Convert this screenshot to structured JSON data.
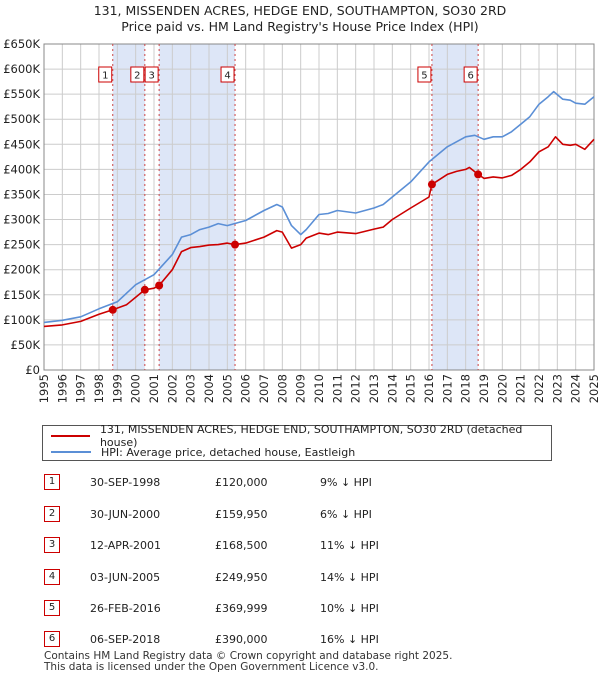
{
  "title_line1": "131, MISSENDEN ACRES, HEDGE END, SOUTHAMPTON, SO30 2RD",
  "title_line2": "Price paid vs. HM Land Registry's House Price Index (HPI)",
  "colors": {
    "property": "#cc0000",
    "hpi": "#5b8fd6",
    "band": "#dde6f7",
    "grid": "#cccccc"
  },
  "chart_data": {
    "type": "line",
    "y_tick_labels": [
      "£0",
      "£50K",
      "£100K",
      "£150K",
      "£200K",
      "£250K",
      "£300K",
      "£350K",
      "£400K",
      "£450K",
      "£500K",
      "£550K",
      "£600K",
      "£650K"
    ],
    "y_ticks": [
      0,
      50000,
      100000,
      150000,
      200000,
      250000,
      300000,
      350000,
      400000,
      450000,
      500000,
      550000,
      600000,
      650000
    ],
    "ylim": [
      0,
      650000
    ],
    "x_tick_labels": [
      "1995",
      "1996",
      "1997",
      "1998",
      "1999",
      "2000",
      "2001",
      "2002",
      "2003",
      "2004",
      "2005",
      "2006",
      "2007",
      "2008",
      "2009",
      "2010",
      "2011",
      "2012",
      "2013",
      "2014",
      "2015",
      "2016",
      "2017",
      "2018",
      "2019",
      "2020",
      "2021",
      "2022",
      "2023",
      "2024",
      "2025"
    ],
    "xlim": [
      1995,
      2025
    ],
    "series": [
      {
        "name": "131, MISSENDEN ACRES, HEDGE END, SOUTHAMPTON, SO30 2RD (detached house)",
        "x": [
          1995,
          1996,
          1997,
          1998,
          1998.75,
          1999.5,
          2000,
          2000.5,
          2001,
          2001.28,
          2002,
          2002.5,
          2003,
          2003.5,
          2004,
          2004.5,
          2005,
          2005.42,
          2006,
          2007,
          2007.7,
          2008,
          2008.5,
          2009,
          2009.3,
          2010,
          2010.5,
          2011,
          2012,
          2013,
          2013.5,
          2014,
          2015,
          2016,
          2016.16,
          2017,
          2017.5,
          2018,
          2018.2,
          2018.68,
          2019,
          2019.5,
          2020,
          2020.5,
          2021,
          2021.5,
          2022,
          2022.5,
          2022.9,
          2023.3,
          2023.7,
          2024,
          2024.5,
          2025
        ],
        "values": [
          87000,
          90000,
          97000,
          111000,
          120000,
          130000,
          145000,
          159950,
          163000,
          168500,
          200000,
          236000,
          244000,
          246000,
          249000,
          250000,
          253000,
          249950,
          253000,
          265000,
          278000,
          275000,
          243000,
          250000,
          263000,
          273000,
          270000,
          275000,
          272000,
          281000,
          285000,
          300000,
          323000,
          345000,
          369999,
          390000,
          396000,
          400000,
          404000,
          390000,
          382000,
          385000,
          383000,
          388000,
          400000,
          415000,
          435000,
          445000,
          465000,
          450000,
          448000,
          450000,
          440000,
          460000
        ]
      },
      {
        "name": "HPI: Average price, detached house, Eastleigh",
        "x": [
          1995,
          1996,
          1997,
          1998,
          1999,
          2000,
          2001,
          2002,
          2002.5,
          2003,
          2003.5,
          2004,
          2004.5,
          2005,
          2006,
          2007,
          2007.7,
          2008,
          2008.5,
          2009,
          2009.3,
          2010,
          2010.5,
          2011,
          2012,
          2013,
          2013.5,
          2014,
          2015,
          2016,
          2017,
          2017.5,
          2018,
          2018.5,
          2019,
          2019.5,
          2020,
          2020.5,
          2021,
          2021.5,
          2022,
          2022.5,
          2022.8,
          2023.3,
          2023.7,
          2024,
          2024.5,
          2025
        ],
        "values": [
          95000,
          99000,
          106000,
          122000,
          136000,
          170000,
          190000,
          230000,
          265000,
          270000,
          280000,
          285000,
          292000,
          288000,
          298000,
          318000,
          330000,
          325000,
          288000,
          270000,
          280000,
          310000,
          312000,
          318000,
          313000,
          323000,
          330000,
          345000,
          375000,
          415000,
          445000,
          455000,
          465000,
          468000,
          460000,
          465000,
          465000,
          475000,
          490000,
          505000,
          530000,
          545000,
          555000,
          540000,
          538000,
          532000,
          530000,
          545000
        ]
      }
    ],
    "sales": [
      {
        "label": "1",
        "x": 1998.75,
        "value": 120000,
        "date": "30-SEP-1998",
        "price": "£120,000",
        "hpi": "9% ↓ HPI"
      },
      {
        "label": "2",
        "x": 2000.5,
        "value": 159950,
        "date": "30-JUN-2000",
        "price": "£159,950",
        "hpi": "6% ↓ HPI"
      },
      {
        "label": "3",
        "x": 2001.28,
        "value": 168500,
        "date": "12-APR-2001",
        "price": "£168,500",
        "hpi": "11% ↓ HPI"
      },
      {
        "label": "4",
        "x": 2005.42,
        "value": 249950,
        "date": "03-JUN-2005",
        "price": "£249,950",
        "hpi": "14% ↓ HPI"
      },
      {
        "label": "5",
        "x": 2016.16,
        "value": 369999,
        "date": "26-FEB-2016",
        "price": "£369,999",
        "hpi": "10% ↓ HPI"
      },
      {
        "label": "6",
        "x": 2018.68,
        "value": 390000,
        "date": "06-SEP-2018",
        "price": "£390,000",
        "hpi": "16% ↓ HPI"
      }
    ],
    "shaded_periods": [
      [
        1998.75,
        2000.5
      ],
      [
        2001.28,
        2005.42
      ],
      [
        2016.16,
        2018.68
      ]
    ]
  },
  "footer_line1": "Contains HM Land Registry data © Crown copyright and database right 2025.",
  "footer_line2": "This data is licensed under the Open Government Licence v3.0."
}
